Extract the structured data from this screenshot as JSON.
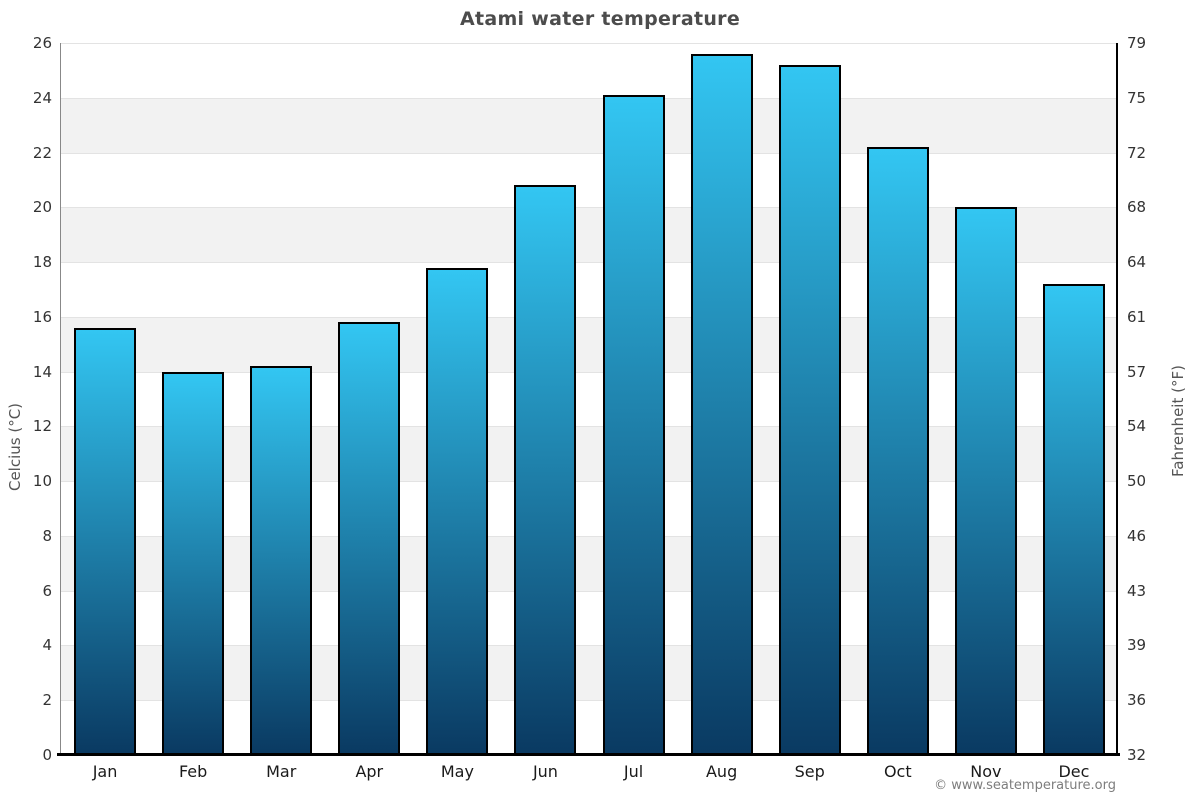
{
  "page": {
    "background": "#ffffff"
  },
  "chart_data": {
    "type": "bar",
    "title": "Atami water temperature",
    "categories": [
      "Jan",
      "Feb",
      "Mar",
      "Apr",
      "May",
      "Jun",
      "Jul",
      "Aug",
      "Sep",
      "Oct",
      "Nov",
      "Dec"
    ],
    "values": [
      15.6,
      14.0,
      14.2,
      15.8,
      17.8,
      20.8,
      24.1,
      25.6,
      25.2,
      22.2,
      20.0,
      17.2
    ],
    "unit": "°C",
    "ylabel_left": "Celcius (°C)",
    "ylabel_right": "Fahrenheit (°F)",
    "ylim": [
      0,
      26
    ],
    "yticks_celsius": [
      0,
      2,
      4,
      6,
      8,
      10,
      12,
      14,
      16,
      18,
      20,
      22,
      24,
      26
    ],
    "yticks_fahrenheit": [
      32,
      36,
      39,
      43,
      46,
      50,
      54,
      57,
      61,
      64,
      68,
      72,
      75,
      79
    ],
    "grid": "horizontal gridlines every 2°C with alternating shaded bands",
    "legend": "none",
    "colors": {
      "bar_gradient_top": "#33c6f2",
      "bar_gradient_bottom": "#0a3a62",
      "bar_border": "#000000",
      "band_shade": "#f2f2f2",
      "gridline": "#e3e3e3",
      "title_text": "#4c4c4c"
    }
  },
  "footer": {
    "attribution": "© www.seatemperature.org"
  }
}
